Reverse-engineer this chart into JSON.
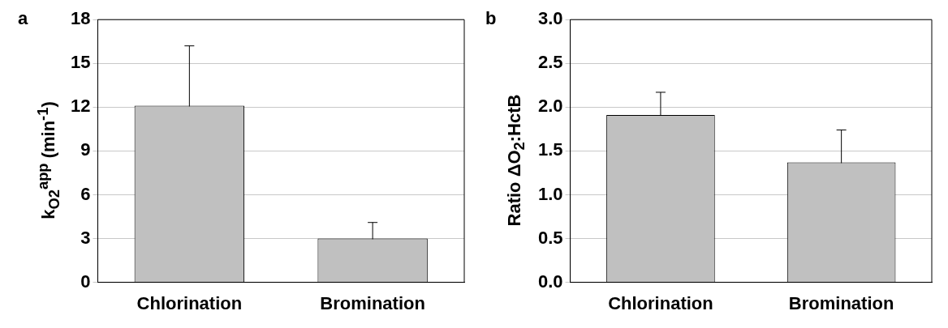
{
  "chart_data": [
    {
      "type": "bar",
      "title": "a",
      "ylabel": "k$_{O2}$$^{app}$ (min$^{-1}$)",
      "categories": [
        "Chlorination",
        "Bromination"
      ],
      "values": [
        12.1,
        3.0
      ],
      "errors": [
        4.1,
        1.1
      ],
      "color": "#c0c0c0",
      "ylim": [
        0,
        18
      ],
      "yticks": [
        0,
        3,
        6,
        9,
        12,
        15,
        18
      ],
      "grid": "y",
      "legend": false
    },
    {
      "type": "bar",
      "title": "b",
      "ylabel": "Ratio ΔO$_{2}$:HctB",
      "categories": [
        "Chlorination",
        "Bromination"
      ],
      "values": [
        1.91,
        1.37
      ],
      "errors": [
        0.26,
        0.37
      ],
      "color": "#c0c0c0",
      "ylim": [
        0,
        3.0
      ],
      "yticks": [
        {
          "value": 0,
          "label": "0.0"
        },
        {
          "value": 0.5,
          "label": "0.5"
        },
        {
          "value": 1,
          "label": "1.0"
        },
        {
          "value": 1.5,
          "label": "1.5"
        },
        {
          "value": 2,
          "label": "2.0"
        },
        {
          "value": 2.5,
          "label": "2.5"
        },
        {
          "value": 3,
          "label": "3.0"
        }
      ],
      "grid": "y",
      "legend": false
    }
  ]
}
